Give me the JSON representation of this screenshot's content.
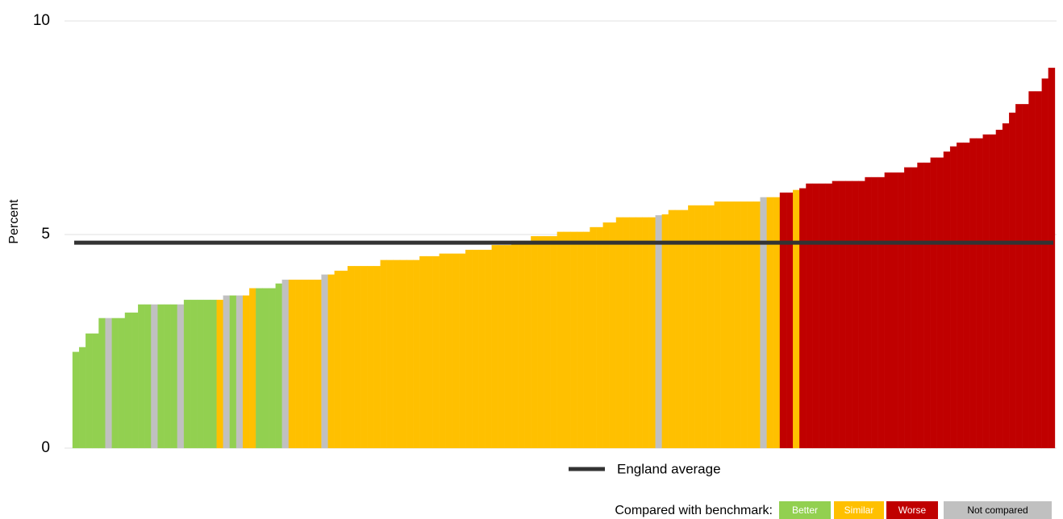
{
  "chart_data": {
    "type": "bar",
    "ylabel": "Percent",
    "ylim": [
      0,
      10
    ],
    "yticks": [
      0,
      5,
      10
    ],
    "grid": true,
    "categories": [
      null,
      null,
      null,
      null,
      null,
      null,
      null,
      null,
      null,
      null,
      null,
      null,
      null,
      null,
      null,
      null,
      null,
      null,
      null,
      null,
      null,
      null,
      null,
      null,
      null,
      null,
      null,
      null,
      null,
      null,
      null,
      null,
      null,
      null,
      null,
      null,
      null,
      null,
      null,
      null,
      null,
      null,
      null,
      null,
      null,
      null,
      null,
      null,
      null,
      null,
      null,
      null,
      null,
      null,
      null,
      null,
      null,
      null,
      null,
      null,
      null,
      null,
      null,
      null,
      null,
      null,
      null,
      null,
      null,
      null,
      null,
      null,
      null,
      null,
      null,
      null,
      null,
      null,
      null,
      null,
      null,
      null,
      null,
      null,
      null,
      null,
      null,
      null,
      null,
      null,
      null,
      null,
      null,
      null,
      null,
      null,
      null,
      null,
      null,
      null,
      null,
      null,
      null,
      null,
      null,
      null,
      null,
      null,
      null,
      null,
      null,
      null,
      null,
      null,
      null,
      null,
      null,
      null,
      null,
      null,
      null,
      null,
      null,
      null,
      null,
      null,
      null,
      null,
      null,
      null,
      null,
      null,
      null,
      null,
      null,
      null,
      null,
      null,
      null,
      null,
      null,
      null,
      null,
      null,
      null,
      null,
      null,
      null,
      null,
      null
    ],
    "values": [
      2.25,
      2.36,
      2.68,
      2.68,
      3.04,
      3.04,
      3.04,
      3.04,
      3.17,
      3.17,
      3.36,
      3.36,
      3.36,
      3.36,
      3.36,
      3.36,
      3.36,
      3.47,
      3.47,
      3.47,
      3.47,
      3.47,
      3.47,
      3.57,
      3.57,
      3.57,
      3.57,
      3.74,
      3.74,
      3.74,
      3.74,
      3.85,
      3.94,
      3.94,
      3.94,
      3.94,
      3.94,
      3.94,
      4.06,
      4.06,
      4.15,
      4.15,
      4.26,
      4.26,
      4.26,
      4.26,
      4.26,
      4.4,
      4.4,
      4.4,
      4.4,
      4.4,
      4.4,
      4.49,
      4.49,
      4.49,
      4.55,
      4.55,
      4.55,
      4.55,
      4.64,
      4.64,
      4.64,
      4.64,
      4.75,
      4.75,
      4.75,
      4.85,
      4.85,
      4.85,
      4.96,
      4.96,
      4.96,
      4.96,
      5.06,
      5.06,
      5.06,
      5.06,
      5.06,
      5.17,
      5.17,
      5.28,
      5.28,
      5.4,
      5.4,
      5.4,
      5.4,
      5.4,
      5.4,
      5.45,
      5.47,
      5.57,
      5.57,
      5.57,
      5.68,
      5.68,
      5.68,
      5.68,
      5.77,
      5.77,
      5.77,
      5.77,
      5.77,
      5.77,
      5.77,
      5.87,
      5.87,
      5.87,
      5.98,
      5.98,
      6.04,
      6.08,
      6.19,
      6.19,
      6.19,
      6.19,
      6.25,
      6.25,
      6.25,
      6.25,
      6.25,
      6.34,
      6.34,
      6.34,
      6.45,
      6.45,
      6.45,
      6.57,
      6.57,
      6.68,
      6.68,
      6.8,
      6.8,
      6.94,
      7.06,
      7.15,
      7.15,
      7.25,
      7.25,
      7.34,
      7.34,
      7.45,
      7.6,
      7.85,
      8.05,
      8.05,
      8.35,
      8.35,
      8.65,
      8.9
    ],
    "status": [
      0,
      0,
      0,
      0,
      0,
      3,
      0,
      0,
      0,
      0,
      0,
      0,
      3,
      0,
      0,
      0,
      3,
      0,
      0,
      0,
      0,
      0,
      1,
      3,
      0,
      3,
      1,
      1,
      0,
      0,
      0,
      0,
      3,
      1,
      1,
      1,
      1,
      1,
      3,
      1,
      1,
      1,
      1,
      1,
      1,
      1,
      1,
      1,
      1,
      1,
      1,
      1,
      1,
      1,
      1,
      1,
      1,
      1,
      1,
      1,
      1,
      1,
      1,
      1,
      1,
      1,
      1,
      1,
      1,
      1,
      1,
      1,
      1,
      1,
      1,
      1,
      1,
      1,
      1,
      1,
      1,
      1,
      1,
      1,
      1,
      1,
      1,
      1,
      1,
      3,
      1,
      1,
      1,
      1,
      1,
      1,
      1,
      1,
      1,
      1,
      1,
      1,
      1,
      1,
      1,
      3,
      1,
      1,
      2,
      2,
      1,
      2,
      2,
      2,
      2,
      2,
      2,
      2,
      2,
      2,
      2,
      2,
      2,
      2,
      2,
      2,
      2,
      2,
      2,
      2,
      2,
      2,
      2,
      2,
      2,
      2,
      2,
      2,
      2,
      2,
      2,
      2,
      2,
      2,
      2,
      2,
      2,
      2,
      2,
      2
    ],
    "legend_title": "Compared with benchmark:",
    "legend": [
      {
        "name": "Better",
        "color": "#92d050"
      },
      {
        "name": "Similar",
        "color": "#ffc000"
      },
      {
        "name": "Worse",
        "color": "#c00000"
      },
      {
        "name": "Not compared",
        "color": "#c0c0c0"
      }
    ],
    "reference_line": {
      "name": "England average",
      "value": 4.81,
      "color": "#333333"
    }
  }
}
